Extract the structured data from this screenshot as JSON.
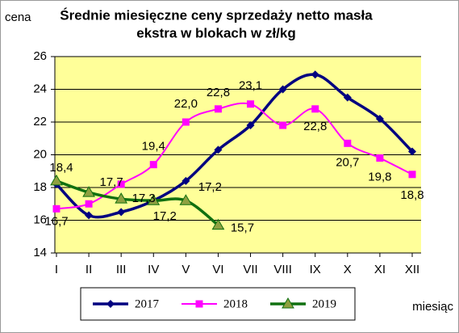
{
  "chart_data": {
    "type": "line",
    "title": [
      "Średnie miesięczne ceny sprzedaży netto masła",
      "ekstra w blokach w zł/kg"
    ],
    "y_label": "cena",
    "x_label": "miesiąc",
    "categories": [
      "I",
      "II",
      "III",
      "IV",
      "V",
      "VI",
      "VII",
      "VIII",
      "IX",
      "X",
      "XI",
      "XII"
    ],
    "ylim": [
      14,
      26
    ],
    "yticks": [
      14,
      16,
      18,
      20,
      22,
      24,
      26
    ],
    "grid": true,
    "legend": "bottom",
    "series": [
      {
        "name": "2017",
        "color": "#000080",
        "marker": "diamond",
        "values": [
          18.2,
          16.3,
          16.5,
          17.2,
          18.4,
          20.3,
          21.8,
          24.0,
          24.9,
          23.5,
          22.2,
          20.2
        ]
      },
      {
        "name": "2018",
        "color": "#ff00ff",
        "marker": "square",
        "values": [
          16.7,
          17.0,
          18.2,
          19.4,
          22.0,
          22.8,
          23.1,
          21.8,
          22.8,
          20.7,
          19.8,
          18.8
        ],
        "value_labels": [
          "16,7",
          null,
          null,
          "19,4",
          "22,0",
          "22,8",
          "23,1",
          null,
          "22,8",
          "20,7",
          "19,8",
          "18,8"
        ]
      },
      {
        "name": "2019",
        "color": "#107010",
        "marker": "triangle",
        "values": [
          18.4,
          17.7,
          17.3,
          17.2,
          17.2,
          15.7,
          null,
          null,
          null,
          null,
          null,
          null
        ],
        "value_labels": [
          "18,4",
          "17,7",
          "17,3",
          "17,2",
          "17,2",
          "15,7",
          null,
          null,
          null,
          null,
          null,
          null
        ]
      }
    ]
  }
}
